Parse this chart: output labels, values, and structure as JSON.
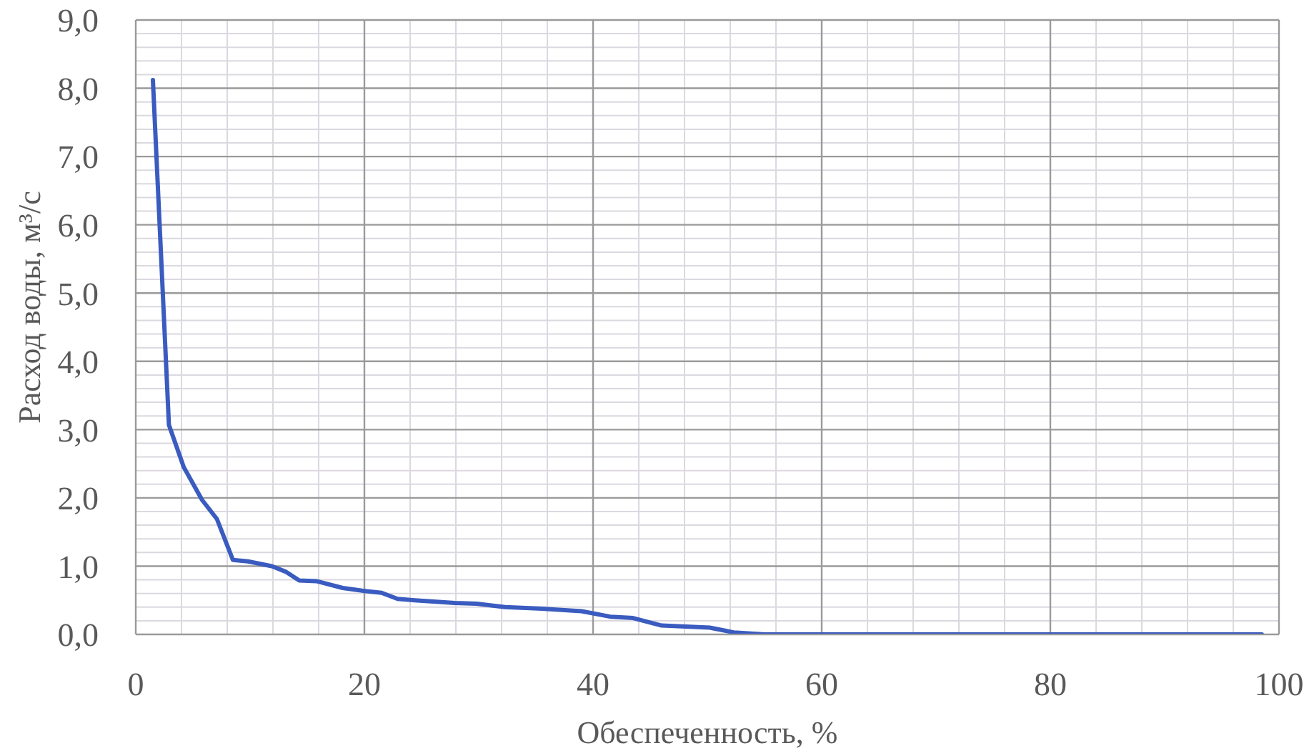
{
  "chart_data": {
    "type": "line",
    "xlabel": "Обеспеченность, %",
    "ylabel": "Расход воды, м³/с",
    "x": [
      1.5,
      2.9,
      4.2,
      5.8,
      7.1,
      8.5,
      9.8,
      11.9,
      13.1,
      14.3,
      15.8,
      18.1,
      19.8,
      21.5,
      22.9,
      24.4,
      27.9,
      29.8,
      32.3,
      35.2,
      39.0,
      41.5,
      43.5,
      46.0,
      50.2,
      52.3,
      55.0,
      98.5
    ],
    "series": [
      {
        "color": "#3a5bbf",
        "values": [
          8.12,
          3.07,
          2.45,
          1.97,
          1.69,
          1.09,
          1.07,
          1.0,
          0.92,
          0.79,
          0.78,
          0.68,
          0.64,
          0.61,
          0.52,
          0.5,
          0.46,
          0.45,
          0.4,
          0.38,
          0.34,
          0.26,
          0.24,
          0.13,
          0.1,
          0.03,
          0.0,
          0.0
        ]
      }
    ],
    "xlim": [
      0,
      100
    ],
    "xticks": [
      0,
      20,
      40,
      60,
      80,
      100
    ],
    "ylim": [
      0,
      9
    ],
    "yticks": [
      {
        "value": 0,
        "label": "0,0"
      },
      {
        "value": 1,
        "label": "1,0"
      },
      {
        "value": 2,
        "label": "2,0"
      },
      {
        "value": 3,
        "label": "3,0"
      },
      {
        "value": 4,
        "label": "4,0"
      },
      {
        "value": 5,
        "label": "5,0"
      },
      {
        "value": 6,
        "label": "6,0"
      },
      {
        "value": 7,
        "label": "7,0"
      },
      {
        "value": 8,
        "label": "8,0"
      },
      {
        "value": 9,
        "label": "9,0"
      }
    ],
    "grid": true
  }
}
